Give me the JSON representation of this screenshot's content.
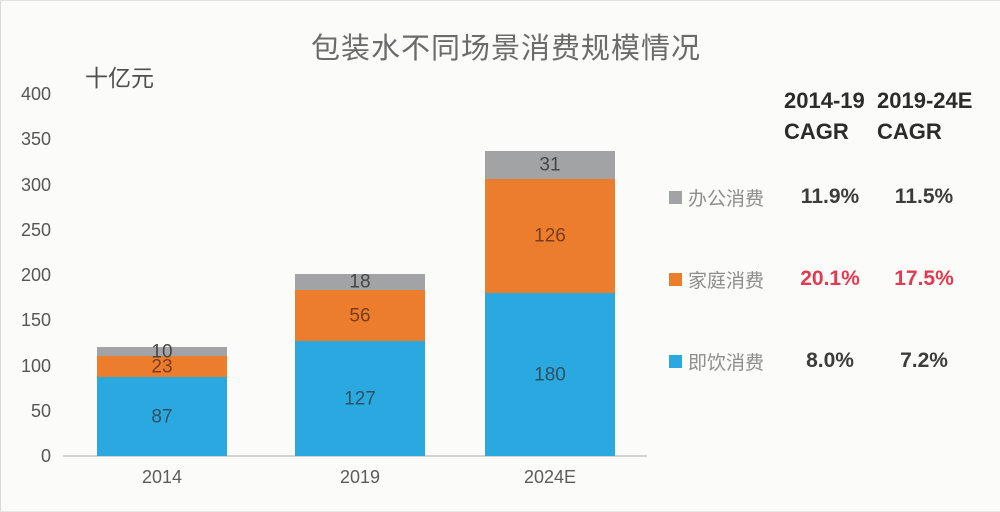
{
  "title": "包装水不同场景消费规模情况",
  "unit_label": "十亿元",
  "chart_data": {
    "type": "bar",
    "stacked": true,
    "title": "包装水不同场景消费规模情况",
    "ylabel": "十亿元",
    "ylim": [
      0,
      400
    ],
    "yticks": [
      0,
      50,
      100,
      150,
      200,
      250,
      300,
      350,
      400
    ],
    "grid": false,
    "legend_position": "right",
    "categories": [
      "2014",
      "2019",
      "2024E"
    ],
    "series": [
      {
        "name": "即饮消费",
        "color": "#29a9e0",
        "label_color": "#2f5061",
        "values": [
          87,
          127,
          180
        ]
      },
      {
        "name": "家庭消费",
        "color": "#ec7d2d",
        "label_color": "#7a3d20",
        "values": [
          23,
          56,
          126
        ]
      },
      {
        "name": "办公消费",
        "color": "#a1a3a5",
        "label_color": "#474747",
        "values": [
          10,
          18,
          31
        ]
      }
    ],
    "totals": [
      120,
      201,
      337
    ]
  },
  "cagr_panel": {
    "col1_header_line1": "2014-19",
    "col1_header_line2": "CAGR",
    "col2_header_line1": "2019-24E",
    "col2_header_line2": "CAGR",
    "rows": [
      {
        "label": "办公消费",
        "swatch_color": "#a1a3a5",
        "cagr_2014_19": "11.9%",
        "cagr_2019_24": "11.5%",
        "value_color": "#3c3c3c"
      },
      {
        "label": "家庭消费",
        "swatch_color": "#ec7d2d",
        "cagr_2014_19": "20.1%",
        "cagr_2019_24": "17.5%",
        "value_color": "#e23a50"
      },
      {
        "label": "即饮消费",
        "swatch_color": "#29a9e0",
        "cagr_2014_19": "8.0%",
        "cagr_2019_24": "7.2%",
        "value_color": "#3c3c3c"
      }
    ]
  }
}
